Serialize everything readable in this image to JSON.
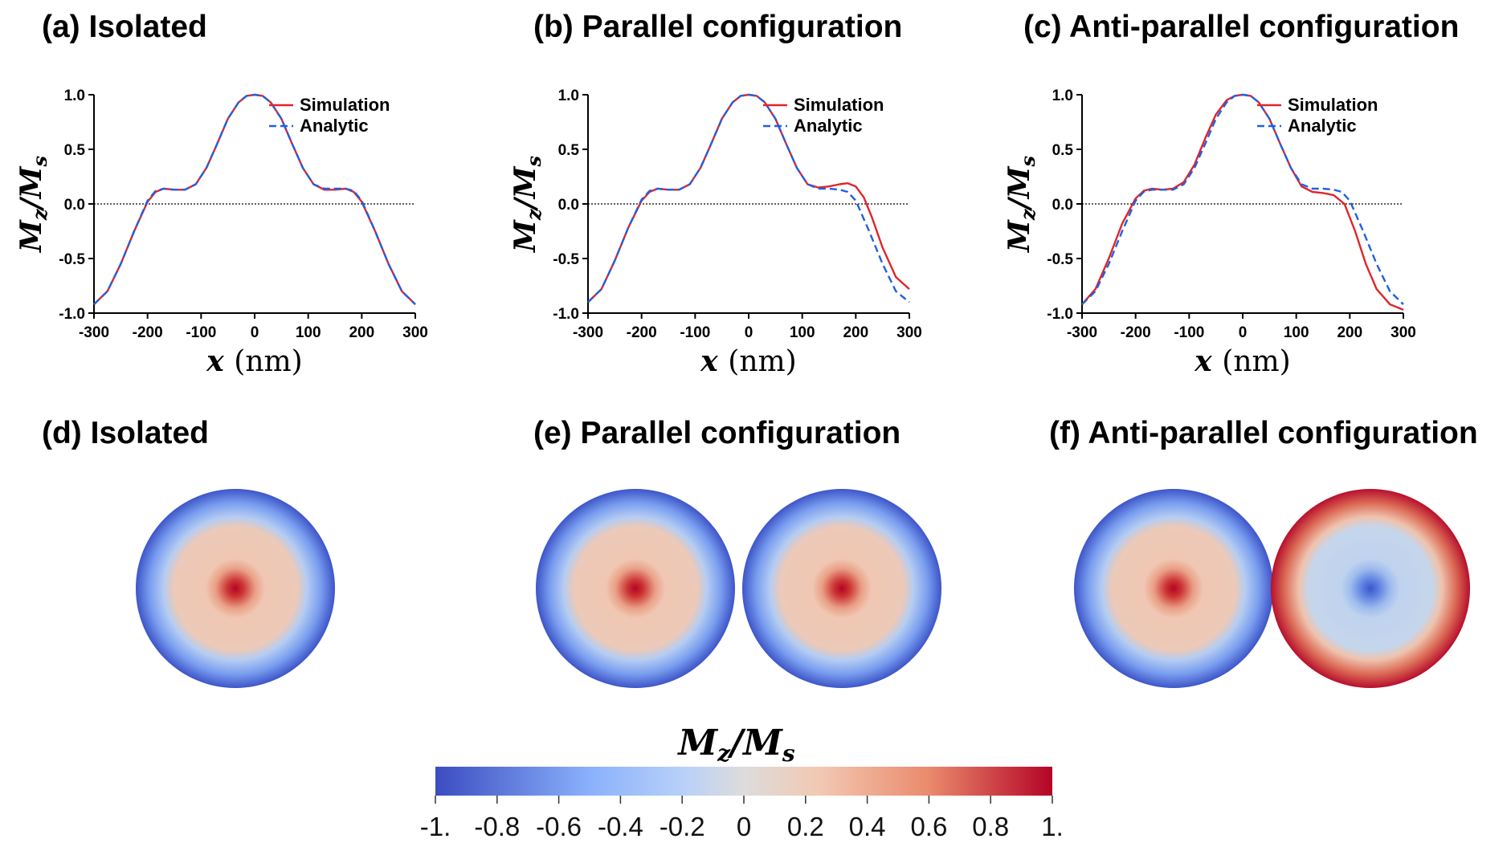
{
  "panels": {
    "a": "(a) Isolated",
    "b": "(b) Parallel configuration",
    "c": "(c) Anti-parallel configuration",
    "d": "(d) Isolated",
    "e": "(e) Parallel configuration",
    "f": "(f) Anti-parallel configuration"
  },
  "colorbar": {
    "label_main": "M",
    "label_sub1": "z",
    "label_div": "/M",
    "label_sub2": "s",
    "ticks": [
      "-1.",
      "-0.8",
      "-0.6",
      "-0.4",
      "-0.2",
      "0",
      "0.2",
      "0.4",
      "0.6",
      "0.8",
      "1."
    ],
    "range": [
      -1,
      1
    ],
    "colormap": [
      "#3b4cc0",
      "#b0cbf5",
      "#dddcdc",
      "#f2c6b2",
      "#b40426"
    ]
  },
  "colors": {
    "simulation": "#e0252b",
    "analytic": "#2060e0"
  },
  "chart_data": [
    {
      "type": "line",
      "title": "(a) Isolated",
      "xlabel": "x (nm)",
      "ylabel": "Mz/Ms",
      "xlim": [
        -300,
        300
      ],
      "ylim": [
        -1,
        1
      ],
      "xticks": [
        "-300",
        "-200",
        "-100",
        "0",
        "100",
        "200",
        "300"
      ],
      "yticks": [
        "1.0",
        "0.5",
        "0.0",
        "-0.5",
        "-1.0"
      ],
      "legend": [
        "Simulation",
        "Analytic"
      ],
      "series": [
        {
          "name": "Simulation",
          "style": "solid",
          "x": [
            -300,
            -275,
            -250,
            -225,
            -200,
            -185,
            -170,
            -150,
            -130,
            -110,
            -90,
            -70,
            -50,
            -30,
            -15,
            0,
            15,
            30,
            50,
            70,
            90,
            110,
            130,
            150,
            170,
            185,
            200,
            225,
            250,
            275,
            300
          ],
          "y": [
            -0.92,
            -0.8,
            -0.55,
            -0.25,
            0.02,
            0.11,
            0.14,
            0.13,
            0.13,
            0.18,
            0.33,
            0.55,
            0.78,
            0.93,
            0.99,
            1.0,
            0.99,
            0.93,
            0.78,
            0.55,
            0.33,
            0.18,
            0.13,
            0.13,
            0.14,
            0.11,
            0.02,
            -0.25,
            -0.55,
            -0.8,
            -0.92
          ]
        },
        {
          "name": "Analytic",
          "style": "dashed",
          "x": [
            -300,
            -275,
            -250,
            -225,
            -200,
            -185,
            -170,
            -150,
            -130,
            -110,
            -90,
            -70,
            -50,
            -30,
            -15,
            0,
            15,
            30,
            50,
            70,
            90,
            110,
            130,
            150,
            170,
            185,
            200,
            225,
            250,
            275,
            300
          ],
          "y": [
            -0.92,
            -0.8,
            -0.55,
            -0.25,
            0.03,
            0.12,
            0.14,
            0.13,
            0.13,
            0.18,
            0.33,
            0.55,
            0.78,
            0.93,
            0.99,
            1.0,
            0.99,
            0.93,
            0.78,
            0.55,
            0.33,
            0.18,
            0.14,
            0.14,
            0.14,
            0.12,
            0.03,
            -0.25,
            -0.55,
            -0.8,
            -0.92
          ]
        }
      ]
    },
    {
      "type": "line",
      "title": "(b) Parallel configuration",
      "xlabel": "x (nm)",
      "ylabel": "Mz/Ms",
      "xlim": [
        -300,
        300
      ],
      "ylim": [
        -1,
        1
      ],
      "xticks": [
        "-300",
        "-200",
        "-100",
        "0",
        "100",
        "200",
        "300"
      ],
      "yticks": [
        "1.0",
        "0.5",
        "0.0",
        "-0.5",
        "-1.0"
      ],
      "legend": [
        "Simulation",
        "Analytic"
      ],
      "series": [
        {
          "name": "Simulation",
          "style": "solid",
          "x": [
            -300,
            -275,
            -250,
            -225,
            -200,
            -185,
            -170,
            -150,
            -130,
            -110,
            -90,
            -70,
            -50,
            -30,
            -15,
            0,
            15,
            30,
            50,
            70,
            90,
            110,
            130,
            150,
            170,
            185,
            200,
            215,
            230,
            250,
            275,
            300
          ],
          "y": [
            -0.9,
            -0.78,
            -0.52,
            -0.22,
            0.03,
            0.11,
            0.14,
            0.13,
            0.13,
            0.18,
            0.33,
            0.55,
            0.78,
            0.93,
            0.99,
            1.0,
            0.99,
            0.93,
            0.78,
            0.55,
            0.33,
            0.18,
            0.15,
            0.16,
            0.18,
            0.19,
            0.16,
            0.06,
            -0.12,
            -0.4,
            -0.67,
            -0.78
          ]
        },
        {
          "name": "Analytic",
          "style": "dashed",
          "x": [
            -300,
            -275,
            -250,
            -225,
            -200,
            -185,
            -170,
            -150,
            -130,
            -110,
            -90,
            -70,
            -50,
            -30,
            -15,
            0,
            15,
            30,
            50,
            70,
            90,
            110,
            130,
            150,
            170,
            185,
            200,
            225,
            250,
            275,
            300
          ],
          "y": [
            -0.9,
            -0.78,
            -0.52,
            -0.22,
            0.04,
            0.12,
            0.14,
            0.13,
            0.13,
            0.18,
            0.33,
            0.55,
            0.78,
            0.93,
            0.99,
            1.0,
            0.99,
            0.93,
            0.78,
            0.55,
            0.33,
            0.18,
            0.14,
            0.14,
            0.13,
            0.11,
            0.03,
            -0.25,
            -0.55,
            -0.8,
            -0.9
          ]
        }
      ]
    },
    {
      "type": "line",
      "title": "(c) Anti-parallel configuration",
      "xlabel": "x (nm)",
      "ylabel": "Mz/Ms",
      "xlim": [
        -300,
        300
      ],
      "ylim": [
        -1,
        1
      ],
      "xticks": [
        "-300",
        "-200",
        "-100",
        "0",
        "100",
        "200",
        "300"
      ],
      "yticks": [
        "1.0",
        "0.5",
        "0.0",
        "-0.5",
        "-1.0"
      ],
      "legend": [
        "Simulation",
        "Analytic"
      ],
      "series": [
        {
          "name": "Simulation",
          "style": "solid",
          "x": [
            -300,
            -275,
            -250,
            -225,
            -200,
            -185,
            -170,
            -150,
            -130,
            -110,
            -90,
            -70,
            -50,
            -30,
            -15,
            0,
            15,
            30,
            50,
            70,
            90,
            110,
            130,
            150,
            170,
            190,
            210,
            230,
            250,
            275,
            300
          ],
          "y": [
            -0.92,
            -0.78,
            -0.5,
            -0.18,
            0.05,
            0.12,
            0.14,
            0.13,
            0.14,
            0.2,
            0.36,
            0.6,
            0.82,
            0.95,
            0.99,
            1.0,
            0.99,
            0.93,
            0.78,
            0.55,
            0.33,
            0.16,
            0.11,
            0.1,
            0.08,
            0.0,
            -0.25,
            -0.55,
            -0.78,
            -0.92,
            -0.97
          ]
        },
        {
          "name": "Analytic",
          "style": "dashed",
          "x": [
            -300,
            -275,
            -250,
            -225,
            -200,
            -185,
            -170,
            -150,
            -130,
            -110,
            -90,
            -70,
            -50,
            -30,
            -15,
            0,
            15,
            30,
            50,
            70,
            90,
            110,
            130,
            150,
            170,
            185,
            200,
            225,
            250,
            275,
            300
          ],
          "y": [
            -0.92,
            -0.8,
            -0.55,
            -0.25,
            0.03,
            0.11,
            0.13,
            0.13,
            0.13,
            0.18,
            0.33,
            0.55,
            0.78,
            0.93,
            0.99,
            1.0,
            0.99,
            0.93,
            0.78,
            0.55,
            0.33,
            0.18,
            0.14,
            0.14,
            0.13,
            0.11,
            0.03,
            -0.25,
            -0.55,
            -0.8,
            -0.92
          ]
        }
      ]
    }
  ]
}
